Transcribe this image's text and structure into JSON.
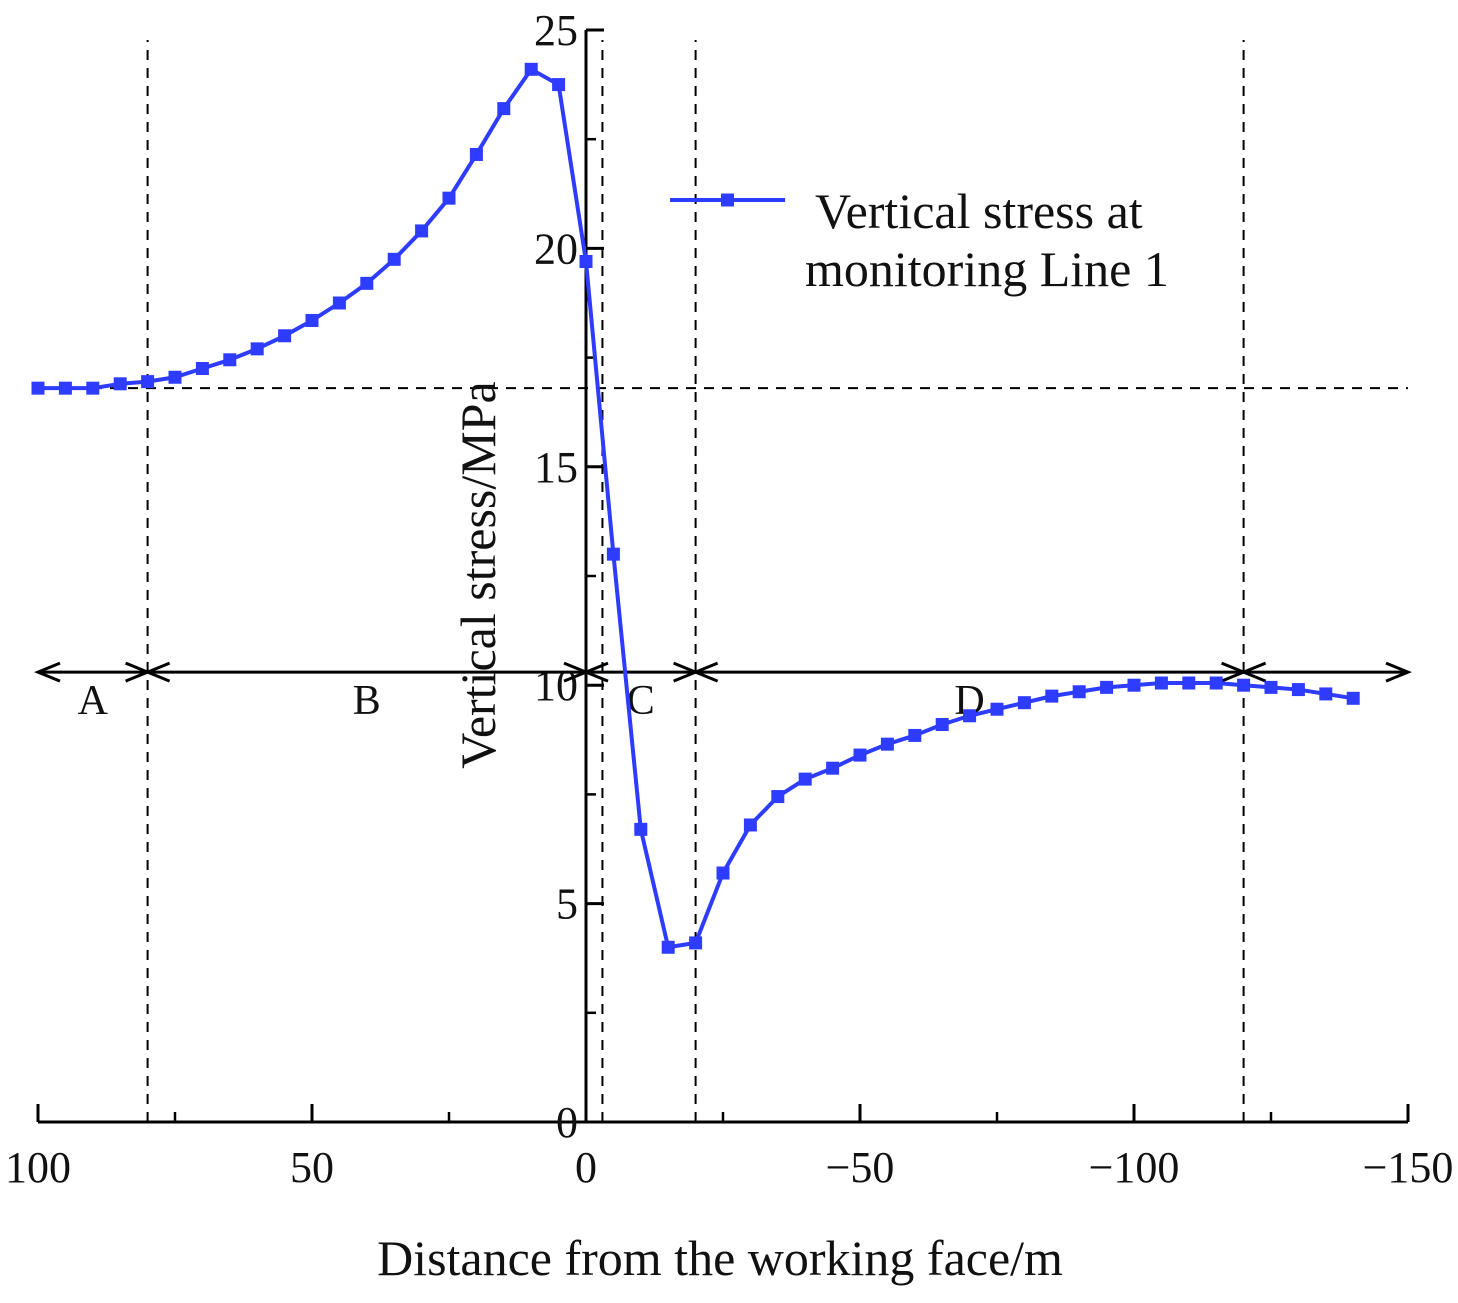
{
  "chart_data": {
    "type": "line",
    "xlabel": "Distance from the working face/m",
    "ylabel": "Vertical stress/MPa",
    "xlim": [
      100,
      -150
    ],
    "ylim": [
      0,
      25
    ],
    "x_reversed": true,
    "x_ticks": [
      100,
      50,
      0,
      -50,
      -100,
      -150
    ],
    "x_tick_labels": [
      "100",
      "50",
      "0",
      "−50",
      "−100",
      "−150"
    ],
    "y_ticks": [
      0,
      5,
      10,
      15,
      20,
      25
    ],
    "y_tick_labels": [
      "0",
      "5",
      "10",
      "15",
      "20",
      "25"
    ],
    "grid": false,
    "legend_position": "top-right",
    "series_color": "#2d3cff",
    "series": [
      {
        "name": "Vertical stress at monitoring Line 1",
        "x": [
          100,
          95,
          90,
          85,
          80,
          75,
          70,
          65,
          60,
          55,
          50,
          45,
          40,
          35,
          30,
          25,
          20,
          15,
          10,
          5,
          0,
          -5,
          -10,
          -15,
          -20,
          -25,
          -30,
          -35,
          -40,
          -45,
          -50,
          -55,
          -60,
          -65,
          -70,
          -75,
          -80,
          -85,
          -90,
          -95,
          -100,
          -105,
          -110,
          -115,
          -120,
          -125,
          -130,
          -135,
          -140
        ],
        "values": [
          16.8,
          16.8,
          16.8,
          16.9,
          16.95,
          17.05,
          17.25,
          17.45,
          17.7,
          18.0,
          18.35,
          18.75,
          19.2,
          19.75,
          20.4,
          21.15,
          22.15,
          23.2,
          24.1,
          23.75,
          19.7,
          13.0,
          6.7,
          4.0,
          4.1,
          5.7,
          6.8,
          7.45,
          7.85,
          8.1,
          8.4,
          8.65,
          8.85,
          9.1,
          9.3,
          9.45,
          9.6,
          9.75,
          9.85,
          9.95,
          10.0,
          10.05,
          10.05,
          10.05,
          10.0,
          9.95,
          9.9,
          9.8,
          9.7
        ]
      }
    ],
    "reference_lines": {
      "horizontal_y": [
        16.8
      ],
      "vertical_x": [
        80,
        -3,
        -20,
        -120
      ]
    },
    "zone_arrow_y": 10.3,
    "zones": [
      {
        "label": "A",
        "from": 100,
        "to": 80
      },
      {
        "label": "B",
        "from": 80,
        "to": 0
      },
      {
        "label": "C",
        "from": 0,
        "to": -20
      },
      {
        "label": "D",
        "from": -20,
        "to": -120
      },
      {
        "label": "",
        "from": -120,
        "to": -150
      }
    ]
  }
}
